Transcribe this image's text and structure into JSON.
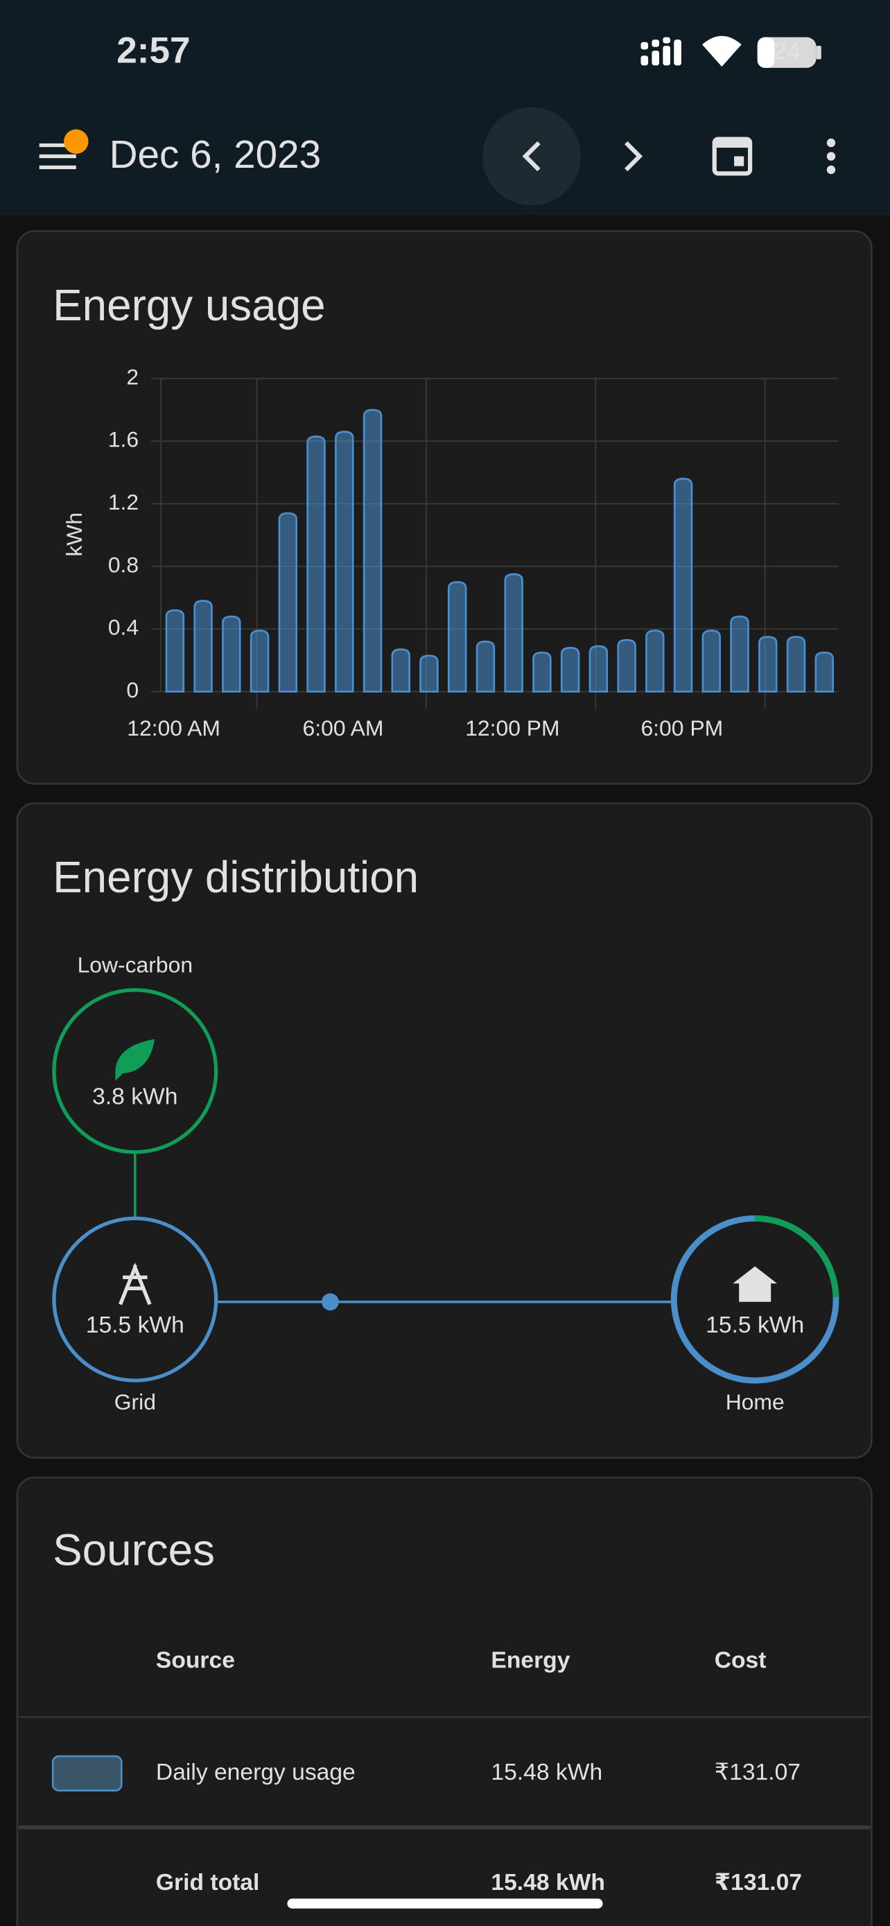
{
  "status_bar": {
    "time": "2:57",
    "battery": "24"
  },
  "header": {
    "date": "Dec 6, 2023"
  },
  "chart_data": {
    "type": "bar",
    "title": "Energy usage",
    "y_label": "kWh",
    "categories": [
      "12:00 AM",
      null,
      null,
      null,
      null,
      null,
      "6:00 AM",
      null,
      null,
      null,
      null,
      null,
      "12:00 PM",
      null,
      null,
      null,
      null,
      null,
      "6:00 PM",
      null,
      null,
      null,
      null,
      null
    ],
    "values": [
      0.52,
      0.58,
      0.48,
      0.39,
      1.14,
      1.63,
      1.66,
      1.8,
      0.27,
      0.23,
      0.7,
      0.32,
      0.75,
      0.25,
      0.28,
      0.29,
      0.33,
      0.39,
      1.36,
      0.39,
      0.48,
      0.35,
      0.35,
      0.25
    ],
    "color": "#4a90d0",
    "ylim": [
      0,
      2
    ],
    "yticks": [
      0,
      0.4,
      0.8,
      1.2,
      1.6,
      2
    ],
    "grid": true
  },
  "distribution": {
    "title": "Energy distribution",
    "low_carbon": {
      "label": "Low-carbon",
      "value": "3.8 kWh"
    },
    "grid": {
      "label": "Grid",
      "value": "15.5 kWh"
    },
    "home": {
      "label": "Home",
      "value": "15.5 kWh"
    }
  },
  "sources": {
    "title": "Sources",
    "columns": [
      "Source",
      "Energy",
      "Cost"
    ],
    "rows": [
      [
        "Daily energy usage",
        "15.48 kWh",
        "₹131.07"
      ],
      [
        "Grid total",
        "15.48 kWh",
        "₹131.07"
      ]
    ]
  }
}
